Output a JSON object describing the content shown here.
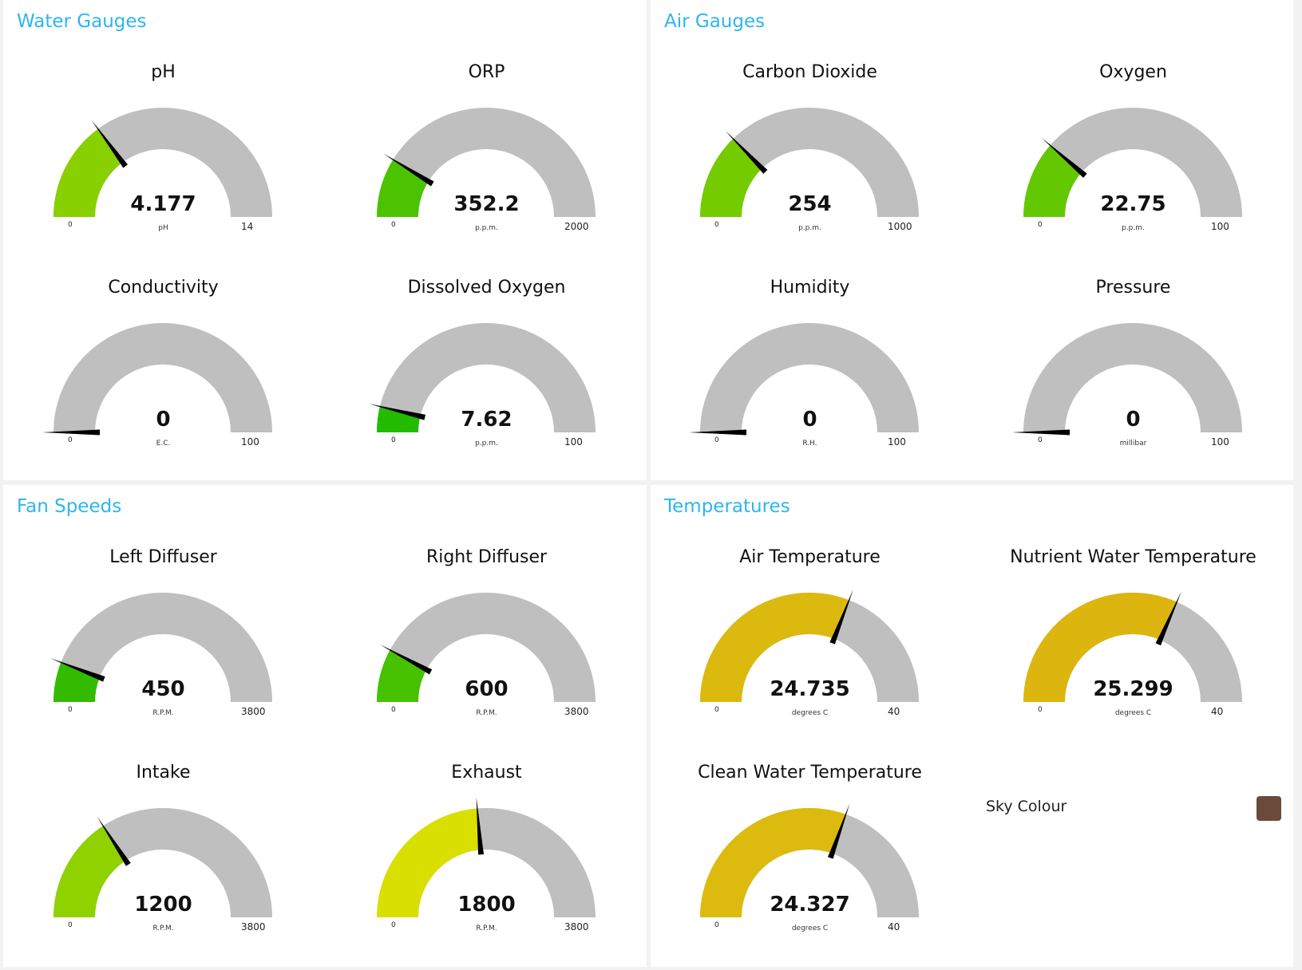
{
  "panels": {
    "water": {
      "title": "Water Gauges"
    },
    "air": {
      "title": "Air Gauges"
    },
    "fan": {
      "title": "Fan Speeds"
    },
    "temp": {
      "title": "Temperatures"
    }
  },
  "gauges": {
    "ph": {
      "title": "pH",
      "value": "4.177",
      "unit": "pH",
      "min": "0",
      "max": "14",
      "fill_fraction": 0.298,
      "color": "#88d000"
    },
    "orp": {
      "title": "ORP",
      "value": "352.2",
      "unit": "p.p.m.",
      "min": "0",
      "max": "2000",
      "fill_fraction": 0.176,
      "color": "#4cc300"
    },
    "conductivity": {
      "title": "Conductivity",
      "value": "0",
      "unit": "E.C.",
      "min": "0",
      "max": "100",
      "fill_fraction": 0,
      "color": "#3fc000"
    },
    "dissolved_oxygen": {
      "title": "Dissolved Oxygen",
      "value": "7.62",
      "unit": "p.p.m.",
      "min": "0",
      "max": "100",
      "fill_fraction": 0.0762,
      "color": "#22bb00"
    },
    "co2": {
      "title": "Carbon Dioxide",
      "value": "254",
      "unit": "p.p.m.",
      "min": "0",
      "max": "1000",
      "fill_fraction": 0.254,
      "color": "#74cc00"
    },
    "oxygen": {
      "title": "Oxygen",
      "value": "22.75",
      "unit": "p.p.m.",
      "min": "0",
      "max": "100",
      "fill_fraction": 0.2275,
      "color": "#64c800"
    },
    "humidity": {
      "title": "Humidity",
      "value": "0",
      "unit": "R.H.",
      "min": "0",
      "max": "100",
      "fill_fraction": 0,
      "color": "#3fc000"
    },
    "pressure": {
      "title": "Pressure",
      "value": "0",
      "unit": "millibar",
      "min": "0",
      "max": "100",
      "fill_fraction": 0,
      "color": "#3fc000"
    },
    "left_diffuser": {
      "title": "Left Diffuser",
      "value": "450",
      "unit": "R.P.M.",
      "min": "0",
      "max": "3800",
      "fill_fraction": 0.118,
      "color": "#33bb00"
    },
    "right_diffuser": {
      "title": "Right Diffuser",
      "value": "600",
      "unit": "R.P.M.",
      "min": "0",
      "max": "3800",
      "fill_fraction": 0.158,
      "color": "#46c200"
    },
    "intake": {
      "title": "Intake",
      "value": "1200",
      "unit": "R.P.M.",
      "min": "0",
      "max": "3800",
      "fill_fraction": 0.316,
      "color": "#90d200"
    },
    "exhaust": {
      "title": "Exhaust",
      "value": "1800",
      "unit": "R.P.M.",
      "min": "0",
      "max": "3800",
      "fill_fraction": 0.474,
      "color": "#d9e000"
    },
    "air_temperature": {
      "title": "Air Temperature",
      "value": "24.735",
      "unit": "degrees C",
      "min": "0",
      "max": "40",
      "fill_fraction": 0.618,
      "color": "#dcb90e"
    },
    "nutrient_water_temperature": {
      "title": "Nutrient Water Temperature",
      "value": "25.299",
      "unit": "degrees C",
      "min": "0",
      "max": "40",
      "fill_fraction": 0.632,
      "color": "#dcb50e"
    },
    "clean_water_temperature": {
      "title": "Clean Water Temperature",
      "value": "24.327",
      "unit": "degrees C",
      "min": "0",
      "max": "40",
      "fill_fraction": 0.608,
      "color": "#dcbb0e"
    }
  },
  "sky": {
    "label": "Sky Colour",
    "color": "#6b4a3a"
  },
  "colors": {
    "track": "#bfbfbf",
    "needle": "#000000",
    "heading": "#2cb6ee"
  }
}
